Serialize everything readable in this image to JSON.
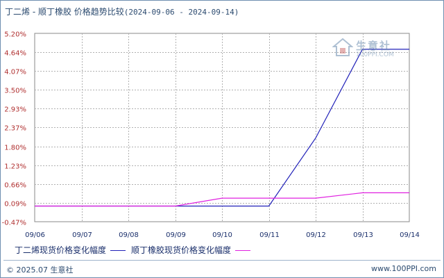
{
  "header": {
    "title": "丁二烯 - 顺丁橡胶 价格趋势比较",
    "date_range": "(2024-09-06 - 2024-09-14)"
  },
  "watermark": {
    "name": "生意社",
    "url": "100PPI.COM"
  },
  "chart_data": {
    "type": "line",
    "title": "丁二烯 - 顺丁橡胶 价格趋势比较",
    "subtitle": "(2024-09-06 - 2024-09-14)",
    "categories": [
      "09/06",
      "09/07",
      "09/08",
      "09/09",
      "09/10",
      "09/11",
      "09/12",
      "09/13",
      "09/14"
    ],
    "y_ticks": [
      "5.20%",
      "4.64%",
      "4.07%",
      "3.50%",
      "2.93%",
      "2.37%",
      "1.80%",
      "1.23%",
      "0.66%",
      "0.09%",
      "-0.47%"
    ],
    "ylim": [
      -0.47,
      5.2
    ],
    "grid": true,
    "legend_position": "bottom",
    "series": [
      {
        "name": "丁二烯现货价格变化幅度",
        "color": "#2020b8",
        "values": [
          0,
          0,
          0,
          0,
          0,
          0,
          2.05,
          4.72,
          4.72
        ]
      },
      {
        "name": "顺丁橡胶现货价格变化幅度",
        "color": "#e020e0",
        "values": [
          0,
          0,
          0,
          0,
          0.24,
          0.24,
          0.24,
          0.4,
          0.4
        ]
      }
    ]
  },
  "footer": {
    "copyright": "© 2025.07 生意社",
    "url": "www.100PPI.com"
  }
}
